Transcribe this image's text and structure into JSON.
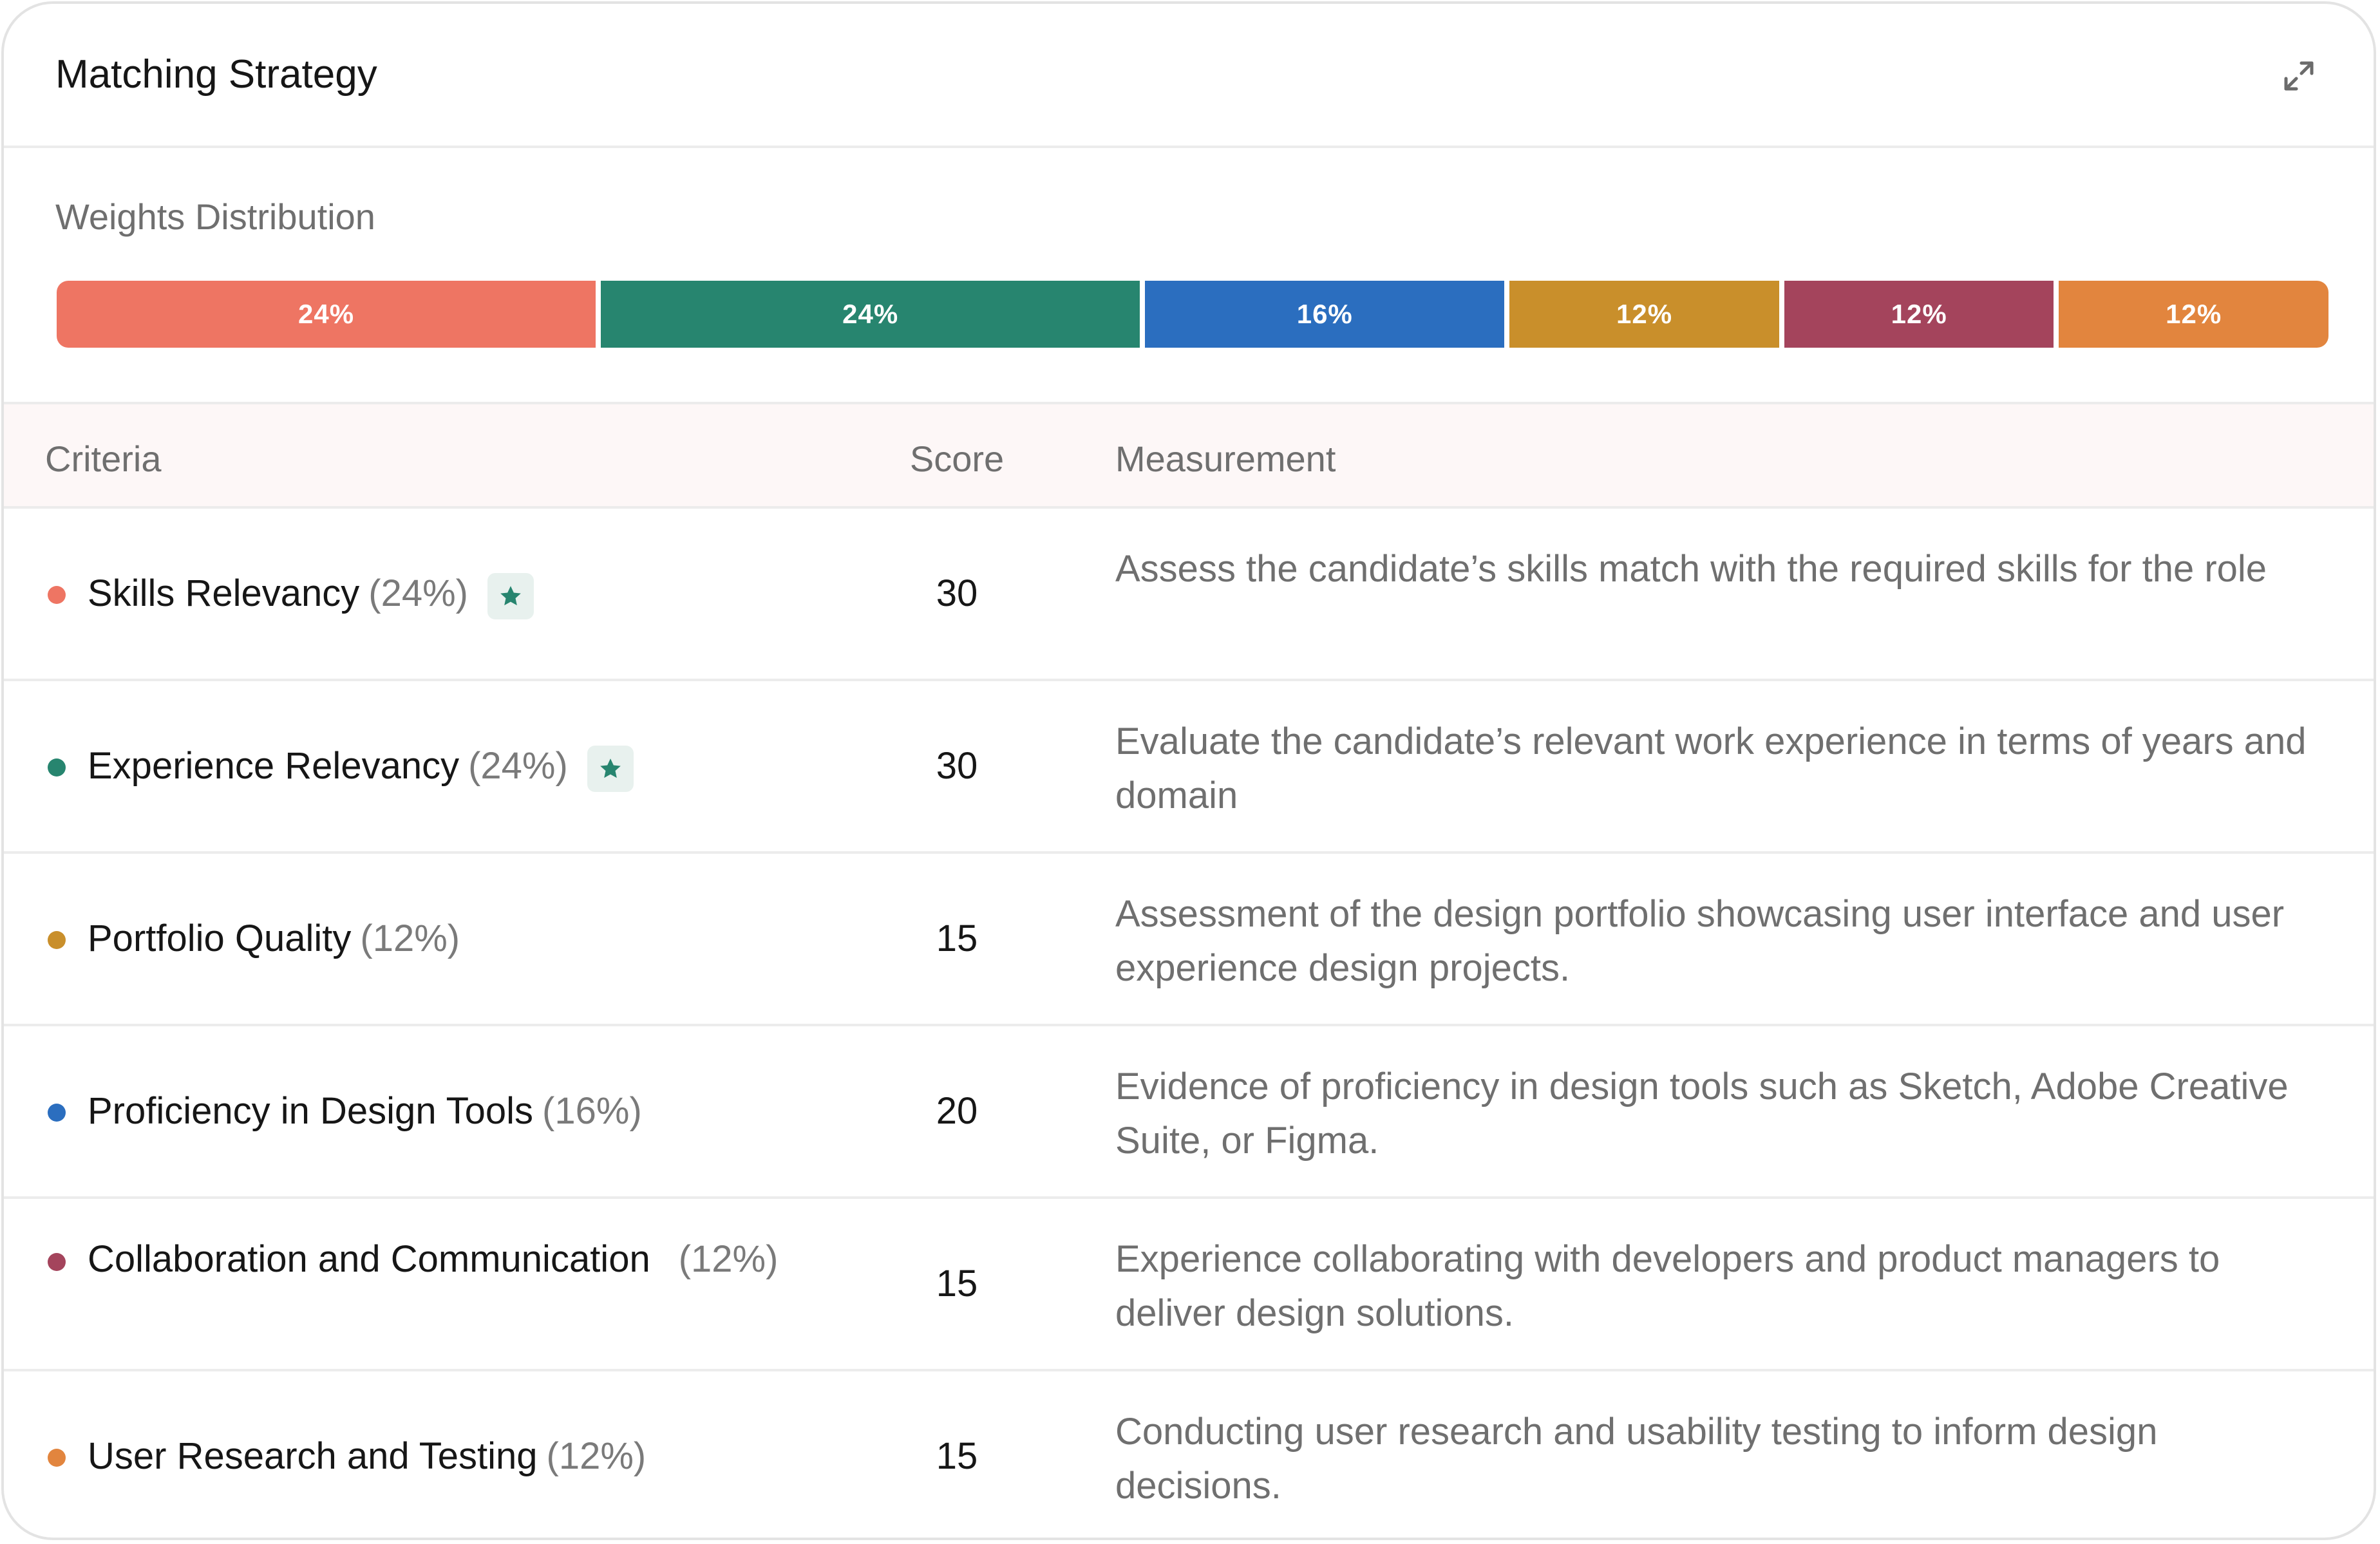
{
  "header": {
    "title": "Matching Strategy"
  },
  "weights": {
    "label": "Weights Distribution",
    "segments": [
      {
        "label": "24%",
        "value": 24,
        "color": "#ee7563"
      },
      {
        "label": "24%",
        "value": 24,
        "color": "#27856f"
      },
      {
        "label": "16%",
        "value": 16,
        "color": "#2b6ebf"
      },
      {
        "label": "12%",
        "value": 12,
        "color": "#c98f2b"
      },
      {
        "label": "12%",
        "value": 12,
        "color": "#a4445c"
      },
      {
        "label": "12%",
        "value": 12,
        "color": "#e2853e"
      }
    ]
  },
  "table": {
    "columns": {
      "criteria": "Criteria",
      "score": "Score",
      "measurement": "Measurement"
    },
    "rows": [
      {
        "name": "Skills Relevancy",
        "pct": "(24%)",
        "score": "30",
        "starred": true,
        "dot_color": "#ee7563",
        "measurement": "Assess the candidate’s skills match with the required skills for the role"
      },
      {
        "name": "Experience Relevancy",
        "pct": "(24%)",
        "score": "30",
        "starred": true,
        "dot_color": "#27856f",
        "measurement": "Evaluate the candidate’s relevant work experience in terms of years and domain"
      },
      {
        "name": "Portfolio Quality",
        "pct": "(12%)",
        "score": "15",
        "starred": false,
        "dot_color": "#c98f2b",
        "measurement": "Assessment of the design portfolio showcasing user interface and user experience design projects."
      },
      {
        "name": "Proficiency in Design Tools",
        "pct": "(16%)",
        "score": "20",
        "starred": false,
        "dot_color": "#2b6ebf",
        "measurement": "Evidence of proficiency in design tools such as Sketch, Adobe Creative Suite, or Figma."
      },
      {
        "name": "Collaboration and Communication",
        "pct": "(12%)",
        "score": "15",
        "starred": false,
        "dot_color": "#a4445c",
        "measurement": "Experience collaborating with developers and product managers to deliver design solutions."
      },
      {
        "name": "User Research and Testing",
        "pct": "(12%)",
        "score": "15",
        "starred": false,
        "dot_color": "#e2853e",
        "measurement": "Conducting user research and usability testing to inform design decisions."
      }
    ]
  },
  "icons": {
    "expand": "expand-icon",
    "star": "star-icon"
  }
}
